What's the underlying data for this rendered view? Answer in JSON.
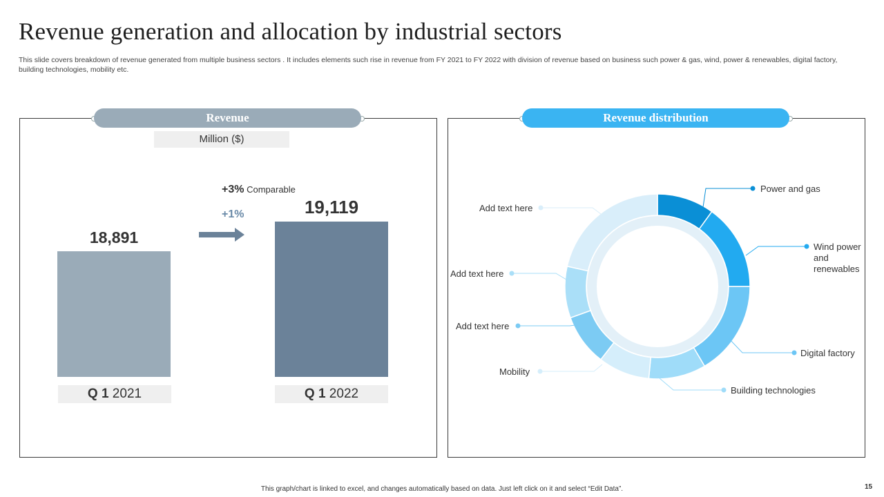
{
  "title": "Revenue generation and allocation by industrial sectors",
  "subtitle": "This slide covers breakdown of revenue generated from multiple business sectors . It includes elements such rise in revenue from FY 2021 to FY 2022 with division of revenue based on business such power & gas, wind, power & renewables, digital factory, building technologies, mobility  etc.",
  "left_panel": {
    "header": "Revenue",
    "unit": "Million ($)",
    "growth_main": "+3%",
    "growth_main_suffix": " Comparable",
    "growth_secondary": "+1%"
  },
  "right_panel": {
    "header": "Revenue distribution"
  },
  "colors": {
    "bar_2021": "#9aabb8",
    "bar_2022": "#6b8299",
    "accent": "#3ab4f2"
  },
  "chart_data": [
    {
      "type": "bar",
      "title": "Revenue",
      "ylabel": "Million ($)",
      "categories": [
        {
          "bold": "Q 1",
          "rest": " 2021"
        },
        {
          "bold": "Q 1",
          "rest": " 2022"
        }
      ],
      "values": [
        18891,
        19119
      ],
      "value_labels": [
        "18,891",
        "19,119"
      ],
      "ylim": [
        0,
        19119
      ]
    },
    {
      "type": "pie",
      "subtype": "donut",
      "title": "Revenue distribution",
      "slices": [
        {
          "label": "Power and gas",
          "value": 10,
          "color": "#0a8fd6"
        },
        {
          "label": "Wind power and renewables",
          "value": 15,
          "color": "#22aaf0"
        },
        {
          "label": "Digital factory",
          "value": 16.5,
          "color": "#6cc6f5"
        },
        {
          "label": "Building technologies",
          "value": 10,
          "color": "#9fdcf9"
        },
        {
          "label": "Mobility",
          "value": 9,
          "color": "#d5eefb"
        },
        {
          "label": "Add text here",
          "value": 9,
          "color": "#7ccbf3"
        },
        {
          "label": "Add text here",
          "value": 9,
          "color": "#aadff8"
        },
        {
          "label": "Add text here",
          "value": 21.5,
          "color": "#d9eefa"
        }
      ],
      "callouts": [
        {
          "text": "Power and gas"
        },
        {
          "text": "Wind power\nand\nrenewables"
        },
        {
          "text": "Digital factory"
        },
        {
          "text": "Building technologies"
        },
        {
          "text": "Mobility"
        },
        {
          "text": "Add text here"
        },
        {
          "text": "Add text here"
        },
        {
          "text": "Add text here"
        }
      ]
    }
  ],
  "footer": "This graph/chart is linked to excel, and changes automatically based on data. Just left click on it and select “Edit Data”.",
  "page_number": "15"
}
